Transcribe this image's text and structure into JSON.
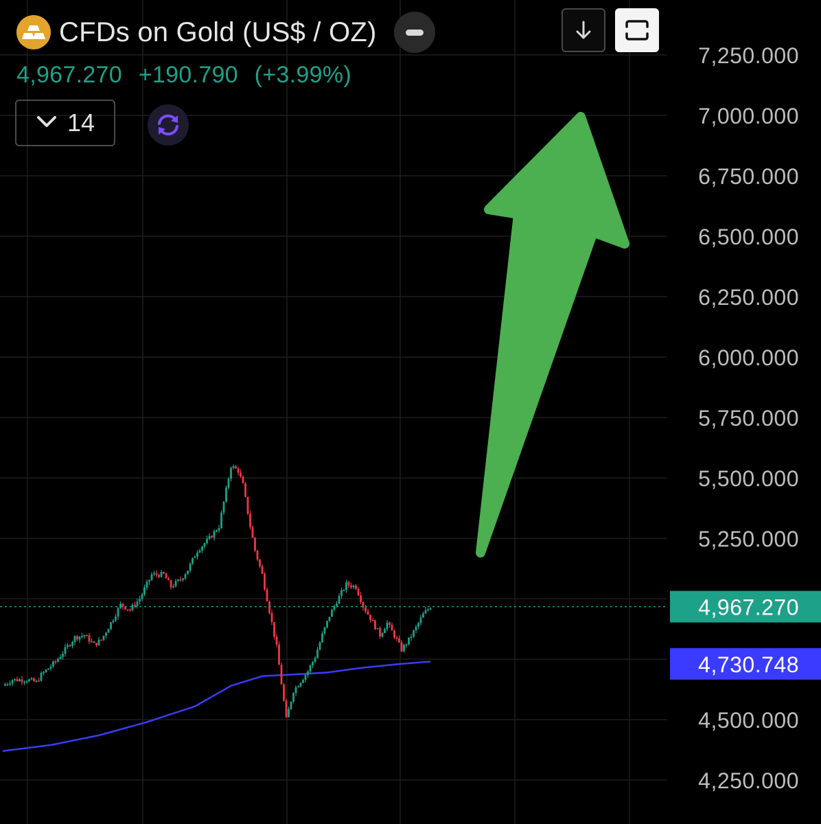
{
  "header": {
    "title": "CFDs on Gold (US$ / OZ)",
    "last_price": "4,967.270",
    "change": "+190.790",
    "change_pct": "(+3.99%)",
    "interval_value": "14",
    "icons": {
      "logo": "gold-bars-icon",
      "collapse": "minus-icon",
      "interval": "chevron-down-icon",
      "sync": "refresh-icon",
      "download": "arrow-down-icon",
      "fullscreen": "fullscreen-icon"
    }
  },
  "colors": {
    "background": "#000000",
    "up": "#1da189",
    "down": "#f23645",
    "moving_average": "#3b3bff",
    "arrow": "#4caf50",
    "logo": "#e2a42a",
    "grid": "#1e1e1e"
  },
  "chart_data": {
    "type": "candlestick",
    "title": "CFDs on Gold (US$ / OZ)",
    "xlabel": "",
    "ylabel": "",
    "ylim": [
      4165,
      7320
    ],
    "y_ticks": [
      "7,250.000",
      "7,000.000",
      "6,750.000",
      "6,500.000",
      "6,250.000",
      "6,000.000",
      "5,750.000",
      "5,500.000",
      "5,250.000",
      "4,500.000",
      "4,250.000"
    ],
    "grid": true,
    "price_lines": [
      {
        "name": "last",
        "value": 4967.27,
        "label": "4,967.270",
        "color": "#1da189",
        "dotted": true
      },
      {
        "name": "ma",
        "value": 4730.748,
        "label": "4,730.748",
        "color": "#3b3bff",
        "dotted": false
      }
    ],
    "anchors": [
      [
        0,
        4640
      ],
      [
        4,
        4665
      ],
      [
        10,
        4665
      ],
      [
        14,
        4655
      ],
      [
        16,
        4685
      ],
      [
        22,
        4740
      ],
      [
        26,
        4790
      ],
      [
        30,
        4840
      ],
      [
        34,
        4850
      ],
      [
        38,
        4810
      ],
      [
        41,
        4830
      ],
      [
        45,
        4900
      ],
      [
        49,
        4975
      ],
      [
        53,
        4955
      ],
      [
        57,
        5000
      ],
      [
        62,
        5100
      ],
      [
        67,
        5100
      ],
      [
        70,
        5050
      ],
      [
        74,
        5080
      ],
      [
        77,
        5120
      ],
      [
        81,
        5200
      ],
      [
        86,
        5250
      ],
      [
        90,
        5300
      ],
      [
        93,
        5450
      ],
      [
        95,
        5550
      ],
      [
        98,
        5530
      ],
      [
        100,
        5470
      ],
      [
        103,
        5300
      ],
      [
        105,
        5200
      ],
      [
        108,
        5100
      ],
      [
        111,
        4950
      ],
      [
        114,
        4800
      ],
      [
        116,
        4650
      ],
      [
        118,
        4500
      ],
      [
        121,
        4620
      ],
      [
        124,
        4660
      ],
      [
        127,
        4700
      ],
      [
        130,
        4760
      ],
      [
        133,
        4850
      ],
      [
        136,
        4930
      ],
      [
        139,
        4990
      ],
      [
        143,
        5060
      ],
      [
        147,
        5050
      ],
      [
        150,
        4970
      ],
      [
        153,
        4920
      ],
      [
        157,
        4850
      ],
      [
        160,
        4900
      ],
      [
        164,
        4830
      ],
      [
        166,
        4790
      ],
      [
        169,
        4830
      ],
      [
        172,
        4880
      ],
      [
        175,
        4935
      ],
      [
        178,
        4968
      ]
    ],
    "moving_average": [
      [
        0,
        4370
      ],
      [
        20,
        4395
      ],
      [
        40,
        4435
      ],
      [
        60,
        4490
      ],
      [
        80,
        4555
      ],
      [
        95,
        4640
      ],
      [
        108,
        4680
      ],
      [
        118,
        4685
      ],
      [
        135,
        4695
      ],
      [
        150,
        4715
      ],
      [
        165,
        4730
      ],
      [
        178,
        4740
      ]
    ],
    "annotation": {
      "type": "arrow",
      "color": "#4caf50",
      "from": [
        5250,
        "right"
      ],
      "to": [
        7000,
        "top"
      ]
    }
  }
}
